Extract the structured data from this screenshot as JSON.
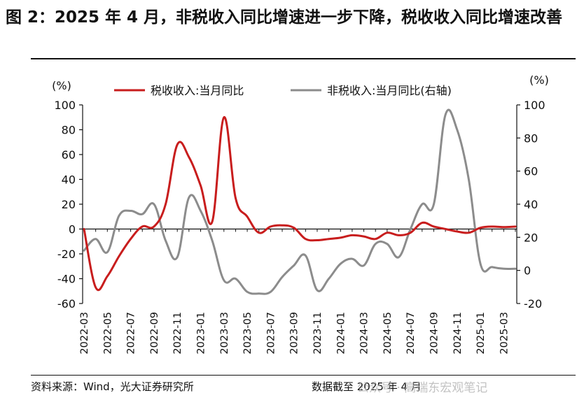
{
  "header": {
    "title": "图 2：2025 年 4 月，非税收入同比增速进一步下降，税收收入同比增速改善"
  },
  "footer": {
    "source": "资料来源：Wind，光大证券研究所",
    "cutoff": "数据截至 2025 年 4 月",
    "watermark": "公众号 · 高瑞东宏观笔记"
  },
  "colors": {
    "tax": "#c81d1d",
    "nontax": "#8c8c8c"
  },
  "chart_data": {
    "type": "line",
    "ylabel_left": "(%)",
    "ylabel_right": "(%)",
    "ylim_left": [
      -60,
      100
    ],
    "ylim_right": [
      -20,
      100
    ],
    "yticks_left": [
      -60,
      -40,
      -20,
      0,
      20,
      40,
      60,
      80,
      100
    ],
    "yticks_right": [
      -20,
      0,
      20,
      40,
      60,
      80,
      100
    ],
    "x": [
      "2022-03",
      "2022-04",
      "2022-05",
      "2022-06",
      "2022-07",
      "2022-08",
      "2022-09",
      "2022-10",
      "2022-11",
      "2022-12",
      "2023-01",
      "2023-02",
      "2023-03",
      "2023-04",
      "2023-05",
      "2023-06",
      "2023-07",
      "2023-08",
      "2023-09",
      "2023-10",
      "2023-11",
      "2023-12",
      "2024-01",
      "2024-02",
      "2024-03",
      "2024-04",
      "2024-05",
      "2024-06",
      "2024-07",
      "2024-08",
      "2024-09",
      "2024-10",
      "2024-11",
      "2024-12",
      "2025-01",
      "2025-02",
      "2025-03",
      "2025-04"
    ],
    "xtick_labels": [
      "2022-03",
      "2022-05",
      "2022-07",
      "2022-09",
      "2022-11",
      "2023-01",
      "2023-03",
      "2023-05",
      "2023-07",
      "2023-09",
      "2023-11",
      "2024-01",
      "2024-03",
      "2024-05",
      "2024-07",
      "2024-09",
      "2024-11",
      "2025-01",
      "2025-03"
    ],
    "legend_position": "top",
    "series": [
      {
        "name": "税收收入:当月同比",
        "axis": "left",
        "values": [
          0,
          -47,
          -38,
          -22,
          -8,
          2,
          2,
          20,
          68,
          58,
          35,
          6,
          90,
          25,
          10,
          -3,
          2,
          3,
          1,
          -8,
          -9,
          -8,
          -7,
          -5,
          -6,
          -8,
          -3,
          -5,
          -3,
          5,
          2,
          0,
          -2,
          -3,
          1,
          2,
          1.5,
          2
        ]
      },
      {
        "name": "非税收入:当月同比(右轴)",
        "axis": "right",
        "values": [
          12,
          19,
          11,
          33,
          36,
          34,
          40,
          18,
          8,
          44,
          36,
          18,
          -6,
          -5,
          -13,
          -14,
          -13,
          -4,
          3,
          9,
          -12,
          -5,
          4,
          7,
          3,
          16,
          16,
          8,
          25,
          40,
          40,
          94,
          85,
          55,
          4,
          2,
          1,
          1
        ]
      }
    ]
  }
}
